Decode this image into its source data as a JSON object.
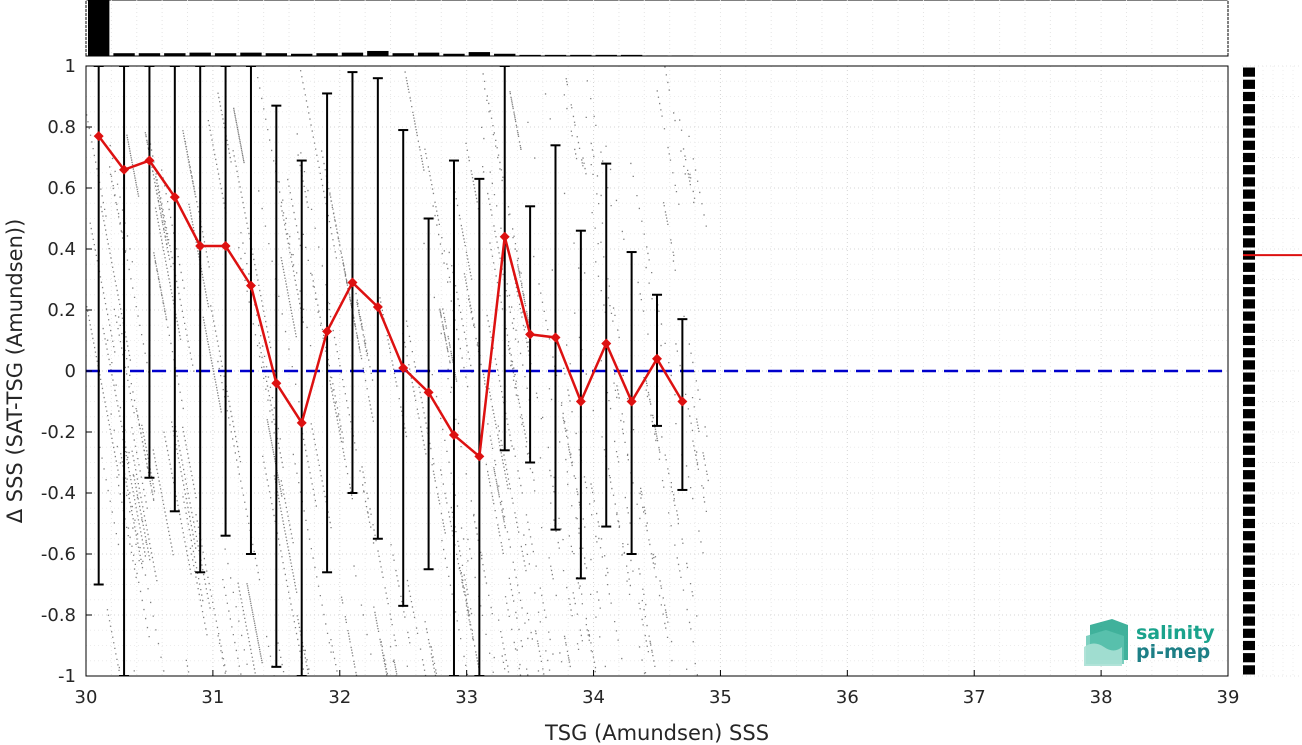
{
  "chart_data": {
    "type": "scatter",
    "xlabel": "TSG (Amundsen) SSS",
    "ylabel": "Δ SSS (SAT-TSG (Amundsen))",
    "xlim": [
      30,
      39
    ],
    "ylim": [
      -1,
      1
    ],
    "xticks": [
      30,
      31,
      32,
      33,
      34,
      35,
      36,
      37,
      38,
      39
    ],
    "yticks": [
      -1,
      -0.8,
      -0.6,
      -0.4,
      -0.2,
      0,
      0.2,
      0.4,
      0.6,
      0.8,
      1
    ],
    "ytick_labels": [
      "-1",
      "-0.8",
      "-0.6",
      "-0.4",
      "-0.2",
      "0",
      "0.2",
      "0.4",
      "0.6",
      "0.8",
      "1"
    ],
    "grid": true,
    "reference_line": {
      "y": 0,
      "color": "#0000cc",
      "style": "dashed"
    },
    "scatter_color": "#808080",
    "scatter_region": {
      "x_range": [
        30,
        34.9
      ],
      "y_range": [
        -1,
        1
      ]
    },
    "binned_median": {
      "color": "#dd1111",
      "x": [
        30.1,
        30.3,
        30.5,
        30.7,
        30.9,
        31.1,
        31.3,
        31.5,
        31.7,
        31.9,
        32.1,
        32.3,
        32.5,
        32.7,
        32.9,
        33.1,
        33.3,
        33.5,
        33.7,
        33.9,
        34.1,
        34.3,
        34.5,
        34.7
      ],
      "y": [
        0.77,
        0.66,
        0.69,
        0.57,
        0.41,
        0.41,
        0.28,
        -0.04,
        -0.17,
        0.13,
        0.29,
        0.21,
        0.01,
        -0.07,
        -0.21,
        -0.28,
        0.44,
        0.12,
        0.11,
        -0.1,
        0.09,
        -0.1,
        0.04,
        -0.1
      ]
    },
    "error_bars": {
      "color": "#000000",
      "lower": [
        -0.7,
        -1.0,
        -0.35,
        -0.46,
        -0.66,
        -0.54,
        -0.6,
        -0.97,
        -1.0,
        -0.66,
        -0.4,
        -0.55,
        -0.77,
        -0.65,
        -1.0,
        -1.0,
        -0.26,
        -0.3,
        -0.52,
        -0.68,
        -0.51,
        -0.6,
        -0.18,
        -0.39
      ],
      "upper": [
        1.0,
        1.0,
        1.0,
        1.0,
        1.0,
        1.0,
        1.0,
        0.87,
        0.69,
        0.91,
        0.98,
        0.96,
        0.79,
        0.5,
        0.69,
        0.63,
        1.0,
        0.54,
        0.74,
        0.46,
        0.68,
        0.39,
        0.25,
        0.17
      ]
    },
    "top_histogram": {
      "x": [
        30.1,
        30.3,
        30.5,
        30.7,
        30.9,
        31.1,
        31.3,
        31.5,
        31.7,
        31.9,
        32.1,
        32.3,
        32.5,
        32.7,
        32.9,
        33.1,
        33.3,
        33.5,
        33.7,
        33.9,
        34.1,
        34.3,
        34.5,
        34.7
      ],
      "counts": [
        100,
        5,
        5,
        5,
        6,
        5,
        6,
        5,
        4,
        5,
        6,
        9,
        5,
        6,
        4,
        7,
        4,
        2,
        2,
        2,
        2,
        2,
        1,
        1
      ]
    },
    "side_histogram": {
      "mean_marker": {
        "y": 0.38,
        "color": "#dd1111"
      }
    }
  },
  "logo": {
    "line1": "salinity",
    "line2": "pi-mep"
  }
}
